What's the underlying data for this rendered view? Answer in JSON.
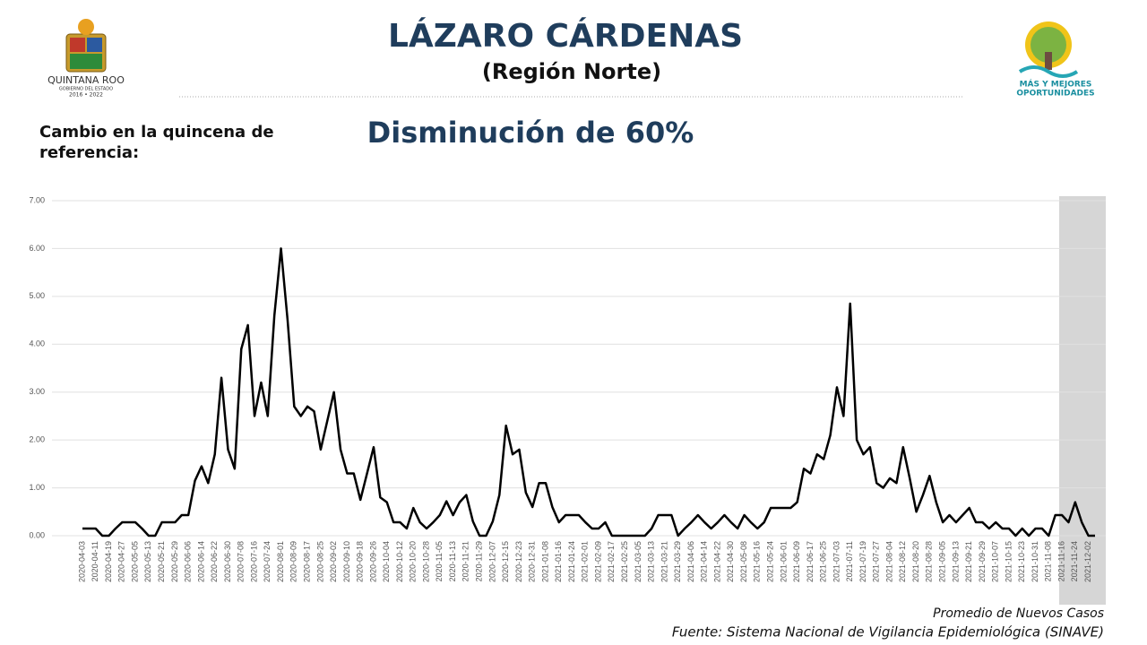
{
  "header": {
    "title": "LÁZARO CÁRDENAS",
    "subtitle": "(Región Norte)",
    "left_logo": {
      "name": "QUINTANA ROO",
      "line1": "GOBIERNO DEL ESTADO",
      "line2": "2016 • 2022"
    },
    "right_logo": {
      "line1": "MÁS Y MEJORES",
      "line2": "OPORTUNIDADES"
    }
  },
  "label": "Cambio en la quincena de referencia:",
  "headline": "Disminución de 60%",
  "source": "Fuente: Sistema Nacional de Vigilancia Epidemiológica (SINAVE)",
  "chart_data": {
    "type": "line",
    "categories": [
      "2020-04-03",
      null,
      "2020-04-11",
      null,
      "2020-04-19",
      null,
      "2020-04-27",
      null,
      "2020-05-05",
      null,
      "2020-05-13",
      null,
      "2020-05-21",
      null,
      "2020-05-29",
      null,
      "2020-06-06",
      null,
      "2020-06-14",
      null,
      "2020-06-22",
      null,
      "2020-06-30",
      null,
      "2020-07-08",
      null,
      "2020-07-16",
      null,
      "2020-07-24",
      null,
      "2020-08-01",
      null,
      "2020-08-09",
      null,
      "2020-08-17",
      null,
      "2020-08-25",
      null,
      "2020-09-02",
      null,
      "2020-09-10",
      null,
      "2020-09-18",
      null,
      "2020-09-26",
      null,
      "2020-10-04",
      null,
      "2020-10-12",
      null,
      "2020-10-20",
      null,
      "2020-10-28",
      null,
      "2020-11-05",
      null,
      "2020-11-13",
      null,
      "2020-11-21",
      null,
      "2020-11-29",
      null,
      "2020-12-07",
      null,
      "2020-12-15",
      null,
      "2020-12-23",
      null,
      "2020-12-31",
      null,
      "2021-01-08",
      null,
      "2021-01-16",
      null,
      "2021-01-24",
      null,
      "2021-02-01",
      null,
      "2021-02-09",
      null,
      "2021-02-17",
      null,
      "2021-02-25",
      null,
      "2021-03-05",
      null,
      "2021-03-13",
      null,
      "2021-03-21",
      null,
      "2021-03-29",
      null,
      "2021-04-06",
      null,
      "2021-04-14",
      null,
      "2021-04-22",
      null,
      "2021-04-30",
      null,
      "2021-05-08",
      null,
      "2021-05-16",
      null,
      "2021-05-24",
      null,
      "2021-06-01",
      null,
      "2021-06-09",
      null,
      "2021-06-17",
      null,
      "2021-06-25",
      null,
      "2021-07-03",
      null,
      "2021-07-11",
      null,
      "2021-07-19",
      null,
      "2021-07-27",
      null,
      "2021-08-04",
      null,
      "2021-08-12",
      null,
      "2021-08-20",
      null,
      "2021-08-28",
      null,
      "2021-09-05",
      null,
      "2021-09-13",
      null,
      "2021-09-21",
      null,
      "2021-09-29",
      null,
      "2021-10-07",
      null,
      "2021-10-15",
      null,
      "2021-10-23",
      null,
      "2021-10-31",
      null,
      "2021-11-08",
      null,
      "2021-11-16",
      null,
      "2021-11-24",
      null,
      "2021-12-02",
      null
    ],
    "series": [
      {
        "name": "Promedio de Nuevos Casos",
        "color": "#000000",
        "values": [
          0.15,
          0.15,
          0.15,
          0.0,
          0.0,
          0.15,
          0.28,
          0.28,
          0.28,
          0.15,
          0.0,
          0.0,
          0.28,
          0.28,
          0.28,
          0.43,
          0.43,
          1.15,
          1.45,
          1.1,
          1.7,
          3.3,
          1.8,
          1.4,
          3.9,
          4.4,
          2.5,
          3.2,
          2.5,
          4.6,
          6.0,
          4.5,
          2.7,
          2.5,
          2.7,
          2.6,
          1.8,
          2.4,
          3.0,
          1.8,
          1.3,
          1.3,
          0.75,
          1.3,
          1.85,
          0.8,
          0.7,
          0.28,
          0.28,
          0.15,
          0.58,
          0.28,
          0.15,
          0.28,
          0.43,
          0.72,
          0.43,
          0.7,
          0.85,
          0.3,
          0.0,
          0.0,
          0.3,
          0.85,
          2.3,
          1.7,
          1.8,
          0.9,
          0.6,
          1.1,
          1.1,
          0.6,
          0.28,
          0.43,
          0.43,
          0.43,
          0.28,
          0.15,
          0.15,
          0.28,
          0.0,
          0.0,
          0.0,
          0.0,
          0.0,
          0.0,
          0.15,
          0.43,
          0.43,
          0.43,
          0.0,
          0.15,
          0.28,
          0.43,
          0.28,
          0.15,
          0.28,
          0.43,
          0.28,
          0.15,
          0.43,
          0.28,
          0.15,
          0.28,
          0.58,
          0.58,
          0.58,
          0.58,
          0.7,
          1.4,
          1.3,
          1.7,
          1.6,
          2.1,
          3.1,
          2.5,
          4.85,
          2.0,
          1.7,
          1.85,
          1.1,
          1.0,
          1.2,
          1.1,
          1.85,
          1.2,
          0.5,
          0.85,
          1.25,
          0.7,
          0.28,
          0.43,
          0.28,
          0.43,
          0.58,
          0.28,
          0.28,
          0.15,
          0.28,
          0.15,
          0.15,
          0.0,
          0.15,
          0.0,
          0.15,
          0.15,
          0.0,
          0.43,
          0.43,
          0.28,
          0.7,
          0.28,
          0.0,
          0.0
        ]
      }
    ],
    "ylim": [
      0,
      7
    ],
    "yticks": [
      {
        "value": 0,
        "label": "0.00"
      },
      {
        "value": 1,
        "label": "1.00"
      },
      {
        "value": 2,
        "label": "2.00"
      },
      {
        "value": 3,
        "label": "3.00"
      },
      {
        "value": 4,
        "label": "4.00"
      },
      {
        "value": 5,
        "label": "5.00"
      },
      {
        "value": 6,
        "label": "6.00"
      },
      {
        "value": 7,
        "label": "7.00"
      }
    ],
    "grid": true,
    "legend": "bottom-right"
  }
}
